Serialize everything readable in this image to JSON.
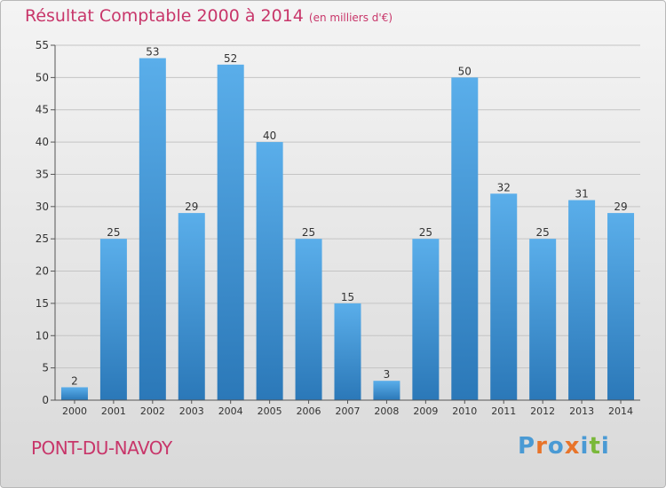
{
  "chart_data": {
    "type": "bar",
    "title": "Résultat Comptable 2000 à 2014",
    "subtitle": "(en milliers d'€)",
    "categories": [
      "2000",
      "2001",
      "2002",
      "2003",
      "2004",
      "2005",
      "2006",
      "2007",
      "2008",
      "2009",
      "2010",
      "2011",
      "2012",
      "2013",
      "2014"
    ],
    "values": [
      2,
      25,
      53,
      29,
      52,
      40,
      25,
      15,
      3,
      25,
      50,
      32,
      25,
      31,
      29
    ],
    "yticks": [
      0,
      5,
      10,
      15,
      20,
      25,
      30,
      35,
      40,
      45,
      50,
      55
    ],
    "ylim": [
      0,
      55
    ],
    "xlabel": "",
    "ylabel": "",
    "grid": true
  },
  "footer": {
    "place": "PONT-DU-NAVOY",
    "logo": "Proxiti"
  },
  "colors": {
    "title": "#c8366a",
    "bar_top": "#5aaeea",
    "bar_bottom": "#2b78b8",
    "grid": "#c4c4c4",
    "logo_letters": [
      "#4a9ad4",
      "#e8742a",
      "#4a9ad4",
      "#e8742a",
      "#4a9ad4",
      "#7ab83a",
      "#4a9ad4"
    ]
  }
}
